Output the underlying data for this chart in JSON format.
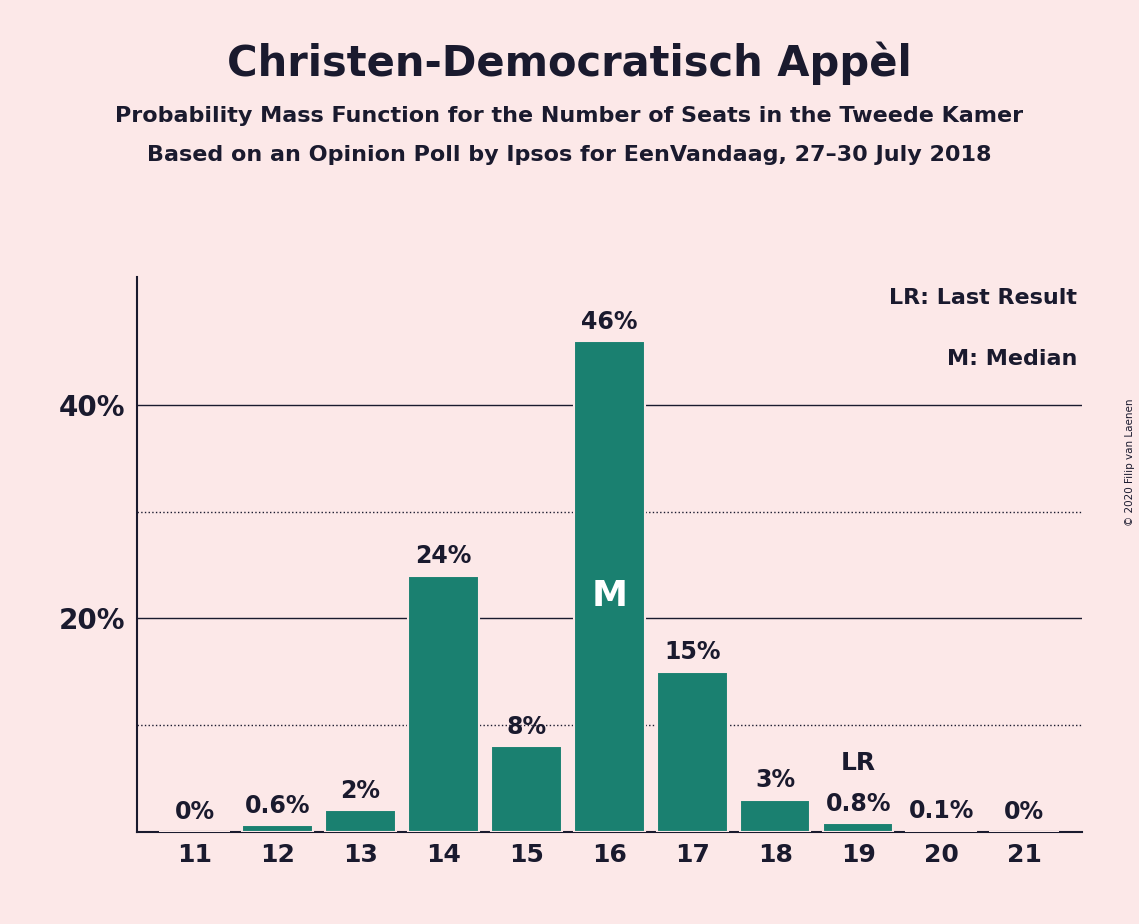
{
  "title": "Christen-Democratisch Appèl",
  "subtitle1": "Probability Mass Function for the Number of Seats in the Tweede Kamer",
  "subtitle2": "Based on an Opinion Poll by Ipsos for EenVandaag, 27–30 July 2018",
  "copyright": "© 2020 Filip van Laenen",
  "seats": [
    11,
    12,
    13,
    14,
    15,
    16,
    17,
    18,
    19,
    20,
    21
  ],
  "probabilities": [
    0.0,
    0.6,
    2.0,
    24.0,
    8.0,
    46.0,
    15.0,
    3.0,
    0.8,
    0.1,
    0.0
  ],
  "bar_color": "#1a8070",
  "background_color": "#fce8e8",
  "bar_edge_color": "#fce8e8",
  "axis_color": "#1a1a2e",
  "text_color": "#1a1a2e",
  "median_seat": 16,
  "lr_seat": 19,
  "ylim": [
    0,
    52
  ],
  "ylabel_ticks": [
    20,
    40
  ],
  "dotted_lines": [
    10,
    30
  ],
  "solid_lines": [
    20,
    40
  ],
  "legend_lr": "LR: Last Result",
  "legend_m": "M: Median",
  "title_fontsize": 30,
  "subtitle_fontsize": 16,
  "label_fontsize": 16,
  "tick_fontsize": 18,
  "bar_label_fontsize": 17,
  "median_label_fontsize": 26
}
